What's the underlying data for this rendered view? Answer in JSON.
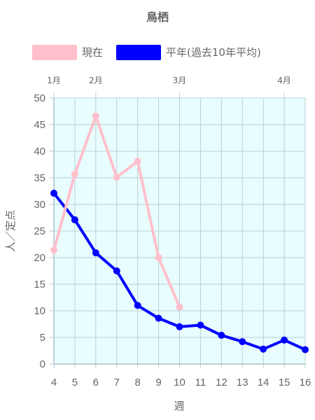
{
  "chart_data": {
    "type": "line",
    "title": "鳥栖",
    "xlabel": "週",
    "ylabel": "人／定点",
    "x": [
      4,
      5,
      6,
      7,
      8,
      9,
      10,
      11,
      12,
      13,
      14,
      15,
      16
    ],
    "ylim": [
      0,
      50
    ],
    "yticks": [
      0,
      5,
      10,
      15,
      20,
      25,
      30,
      35,
      40,
      45,
      50
    ],
    "month_labels": [
      {
        "label": "1月",
        "week": 4
      },
      {
        "label": "2月",
        "week": 6
      },
      {
        "label": "3月",
        "week": 10
      },
      {
        "label": "4月",
        "week": 15
      }
    ],
    "series": [
      {
        "name": "現在",
        "color": "#ffc0cb",
        "values": [
          21.4,
          35.7,
          46.6,
          35.1,
          38.1,
          20.0,
          10.7,
          null,
          null,
          null,
          null,
          null,
          null
        ]
      },
      {
        "name": "平年(過去10年平均)",
        "color": "#0000ff",
        "values": [
          32.1,
          27.1,
          20.9,
          17.5,
          11.0,
          8.6,
          7.0,
          7.3,
          5.4,
          4.2,
          2.8,
          4.5,
          2.7
        ]
      }
    ],
    "grid": true,
    "plot_background": "#e8fdfd",
    "legend_position": "top"
  }
}
